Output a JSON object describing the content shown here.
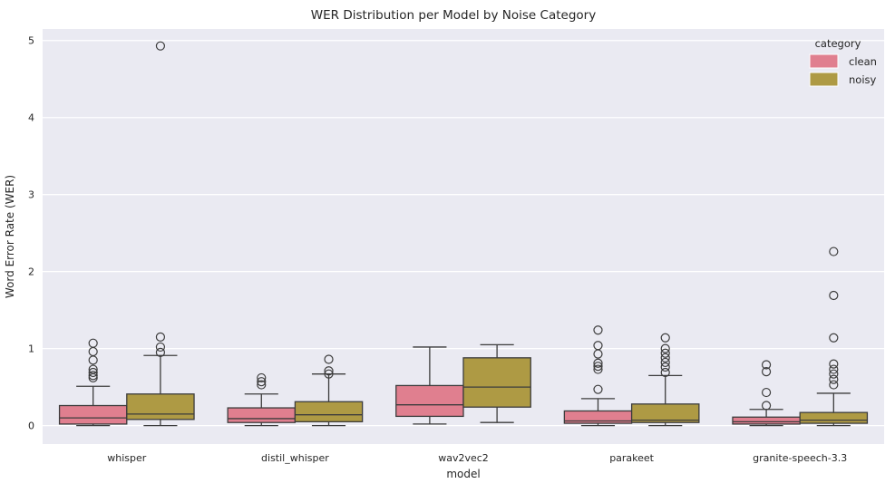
{
  "chart_data": {
    "type": "box",
    "title": "WER Distribution per Model by Noise Category",
    "xlabel": "model",
    "ylabel": "Word Error Rate (WER)",
    "ylim": [
      -0.24,
      5.15
    ],
    "yticks": [
      0,
      1,
      2,
      3,
      4,
      5
    ],
    "categories": [
      "whisper",
      "distil_whisper",
      "wav2vec2",
      "parakeet",
      "granite-speech-3.3"
    ],
    "legend": {
      "title": "category",
      "position": "upper-right",
      "entries": [
        {
          "label": "clean",
          "color": "#e07f8f"
        },
        {
          "label": "noisy",
          "color": "#ae9a44"
        }
      ]
    },
    "grid": true,
    "style": {
      "axes_background": "#eaeaf2",
      "gridline_color": "#ffffff",
      "box_edge_color": "#3c3c3c",
      "text_color": "#262626",
      "clean_color": "#e07f8f",
      "noisy_color": "#ae9a44"
    },
    "series": [
      {
        "name": "clean",
        "color": "#e07f8f",
        "boxes": [
          {
            "model": "whisper",
            "whislo": 0.0,
            "q1": 0.02,
            "med": 0.1,
            "q3": 0.26,
            "whishi": 0.51,
            "fliers": [
              0.62,
              0.65,
              0.69,
              0.73,
              0.85,
              0.96,
              1.07
            ]
          },
          {
            "model": "distil_whisper",
            "whislo": 0.0,
            "q1": 0.04,
            "med": 0.09,
            "q3": 0.23,
            "whishi": 0.41,
            "fliers": [
              0.53,
              0.57,
              0.62
            ]
          },
          {
            "model": "wav2vec2",
            "whislo": 0.02,
            "q1": 0.12,
            "med": 0.27,
            "q3": 0.52,
            "whishi": 1.02,
            "fliers": []
          },
          {
            "model": "parakeet",
            "whislo": 0.0,
            "q1": 0.03,
            "med": 0.06,
            "q3": 0.19,
            "whishi": 0.35,
            "fliers": [
              0.47,
              0.73,
              0.77,
              0.81,
              0.93,
              1.04,
              1.24
            ]
          },
          {
            "model": "granite-speech-3.3",
            "whislo": 0.0,
            "q1": 0.02,
            "med": 0.05,
            "q3": 0.11,
            "whishi": 0.21,
            "fliers": [
              0.26,
              0.43,
              0.7,
              0.79
            ]
          }
        ]
      },
      {
        "name": "noisy",
        "color": "#ae9a44",
        "boxes": [
          {
            "model": "whisper",
            "whislo": 0.0,
            "q1": 0.08,
            "med": 0.15,
            "q3": 0.41,
            "whishi": 0.91,
            "fliers": [
              0.95,
              1.02,
              1.15,
              4.93
            ]
          },
          {
            "model": "distil_whisper",
            "whislo": 0.0,
            "q1": 0.05,
            "med": 0.14,
            "q3": 0.31,
            "whishi": 0.67,
            "fliers": [
              0.67,
              0.71,
              0.86
            ]
          },
          {
            "model": "wav2vec2",
            "whislo": 0.04,
            "q1": 0.24,
            "med": 0.5,
            "q3": 0.88,
            "whishi": 1.05,
            "fliers": []
          },
          {
            "model": "parakeet",
            "whislo": 0.0,
            "q1": 0.04,
            "med": 0.07,
            "q3": 0.28,
            "whishi": 0.65,
            "fliers": [
              0.69,
              0.76,
              0.82,
              0.88,
              0.94,
              1.0,
              1.14
            ]
          },
          {
            "model": "granite-speech-3.3",
            "whislo": 0.0,
            "q1": 0.03,
            "med": 0.07,
            "q3": 0.17,
            "whishi": 0.42,
            "fliers": [
              0.53,
              0.6,
              0.67,
              0.73,
              0.8,
              1.14,
              1.69,
              2.26
            ]
          }
        ]
      }
    ]
  }
}
